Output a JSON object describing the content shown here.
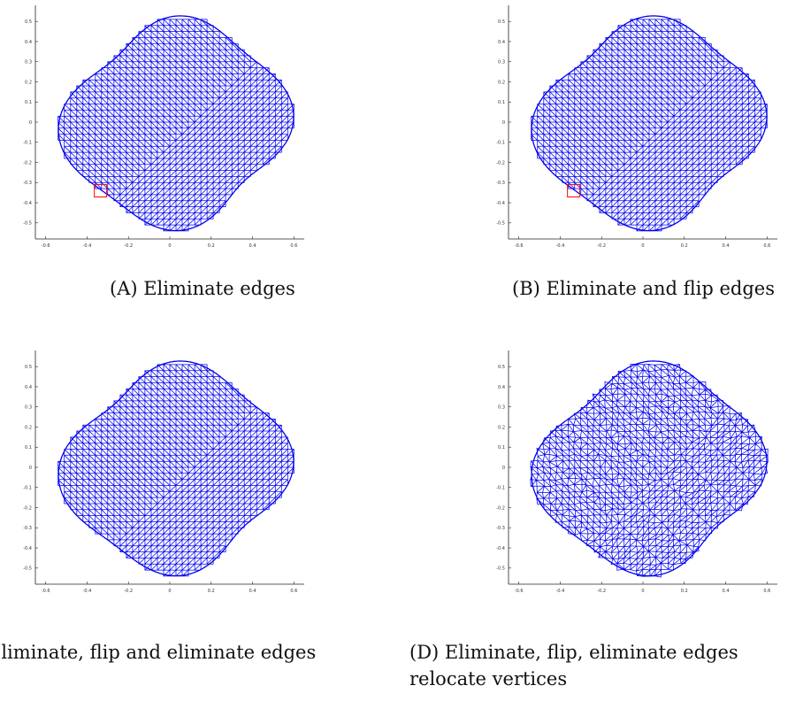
{
  "figure": {
    "panels": [
      {
        "id": "a",
        "caption_tag": "(A)",
        "caption_text": "Eliminate edges",
        "caption_lines": [
          "(A) Eliminate edges"
        ],
        "highlight_box": true,
        "jitter": 0,
        "chart_data": {
          "type": "mesh",
          "xlim": [
            -0.65,
            0.65
          ],
          "ylim": [
            -0.58,
            0.58
          ],
          "xticks": [
            -0.6,
            -0.4,
            -0.2,
            0,
            0.2,
            0.4,
            0.6
          ],
          "xtick_labels": [
            "-0.6",
            "-0.4",
            "-0.2",
            "0",
            "0.2",
            "0.4",
            "0.6"
          ],
          "yticks": [
            0.5,
            0.4,
            0.3,
            0.2,
            0.1,
            0,
            -0.1,
            -0.2,
            -0.3,
            -0.4,
            -0.5
          ],
          "ytick_labels": [
            "0.5",
            "0.4",
            "0.3",
            "0.2",
            "0.1",
            "0",
            "-0.1",
            "-0.2",
            "-0.3",
            "-0.4",
            "-0.5"
          ],
          "mesh_color": "#0000ee",
          "highlight_color": "#ff0000"
        }
      },
      {
        "id": "b",
        "caption_tag": "(B)",
        "caption_text": "Eliminate and flip edges",
        "caption_lines": [
          "(B) Eliminate and flip edges"
        ],
        "highlight_box": true,
        "jitter": 0,
        "chart_data": {
          "type": "mesh",
          "xlim": [
            -0.65,
            0.65
          ],
          "ylim": [
            -0.58,
            0.58
          ],
          "xticks": [
            -0.6,
            -0.4,
            -0.2,
            0,
            0.2,
            0.4,
            0.6
          ],
          "xtick_labels": [
            "-0.6",
            "-0.4",
            "-0.2",
            "0",
            "0.2",
            "0.4",
            "0.6"
          ],
          "yticks": [
            0.5,
            0.4,
            0.3,
            0.2,
            0.1,
            0,
            -0.1,
            -0.2,
            -0.3,
            -0.4,
            -0.5
          ],
          "ytick_labels": [
            "0.5",
            "0.4",
            "0.3",
            "0.2",
            "0.1",
            "0",
            "-0.1",
            "-0.2",
            "-0.3",
            "-0.4",
            "-0.5"
          ],
          "mesh_color": "#0000ee",
          "highlight_color": "#ff0000"
        }
      },
      {
        "id": "c",
        "caption_tag": "",
        "caption_text": "Eliminate, flip and eliminate edges",
        "caption_lines": [
          "Eliminate, flip and eliminate edges"
        ],
        "highlight_box": false,
        "jitter": 0,
        "chart_data": {
          "type": "mesh",
          "xlim": [
            -0.65,
            0.65
          ],
          "ylim": [
            -0.58,
            0.58
          ],
          "xticks": [
            -0.6,
            -0.4,
            -0.2,
            0,
            0.2,
            0.4,
            0.6
          ],
          "xtick_labels": [
            "-0.6",
            "-0.4",
            "-0.2",
            "0",
            "0.2",
            "0.4",
            "0.6"
          ],
          "yticks": [
            0.5,
            0.4,
            0.3,
            0.2,
            0.1,
            0,
            -0.1,
            -0.2,
            -0.3,
            -0.4,
            -0.5
          ],
          "ytick_labels": [
            "0.5",
            "0.4",
            "0.3",
            "0.2",
            "0.1",
            "0",
            "-0.1",
            "-0.2",
            "-0.3",
            "-0.4",
            "-0.5"
          ],
          "mesh_color": "#0000ee",
          "highlight_color": "#ff0000"
        }
      },
      {
        "id": "d",
        "caption_tag": "(D)",
        "caption_text": "Eliminate, flip, eliminate edges",
        "caption_lines": [
          "(D) Eliminate, flip, eliminate edges",
          "relocate vertices"
        ],
        "highlight_box": false,
        "jitter": 1,
        "chart_data": {
          "type": "mesh",
          "xlim": [
            -0.65,
            0.65
          ],
          "ylim": [
            -0.58,
            0.58
          ],
          "xticks": [
            -0.6,
            -0.4,
            -0.2,
            0,
            0.2,
            0.4,
            0.6
          ],
          "xtick_labels": [
            "-0.6",
            "-0.4",
            "-0.2",
            "0",
            "0.2",
            "0.4",
            "0.6"
          ],
          "yticks": [
            0.5,
            0.4,
            0.3,
            0.2,
            0.1,
            0,
            -0.1,
            -0.2,
            -0.3,
            -0.4,
            -0.5
          ],
          "ytick_labels": [
            "0.5",
            "0.4",
            "0.3",
            "0.2",
            "0.1",
            "0",
            "-0.1",
            "-0.2",
            "-0.3",
            "-0.4",
            "-0.5"
          ],
          "mesh_color": "#0000ee",
          "highlight_color": "#ff0000"
        }
      }
    ]
  }
}
